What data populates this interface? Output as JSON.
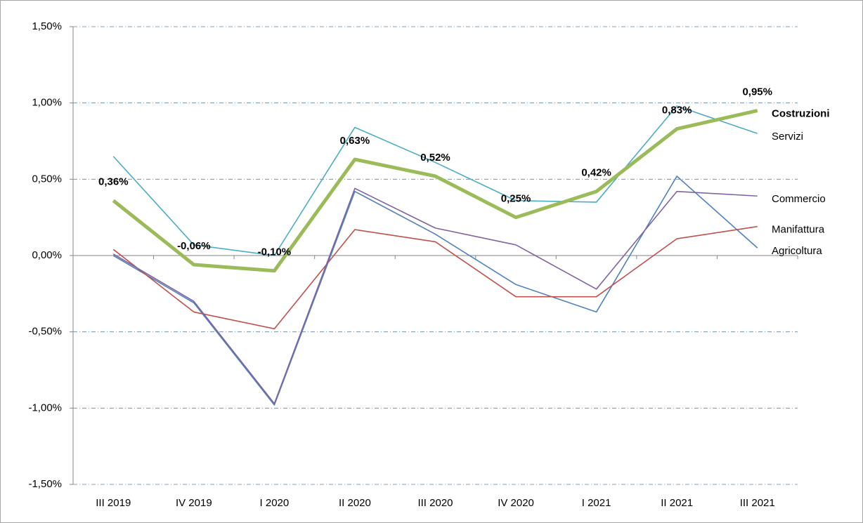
{
  "chart_data": {
    "type": "line",
    "categories": [
      "III 2019",
      "IV 2019",
      "I 2020",
      "II 2020",
      "III 2020",
      "IV 2020",
      "I 2021",
      "II 2021",
      "III 2021"
    ],
    "ylim": [
      -1.5,
      1.5
    ],
    "yticks": [
      {
        "value": -1.5,
        "label": "-1,50%"
      },
      {
        "value": -1.0,
        "label": "-1,00%"
      },
      {
        "value": -0.5,
        "label": "-0,50%"
      },
      {
        "value": 0,
        "label": "0,00%"
      },
      {
        "value": 0.5,
        "label": "0,50%"
      },
      {
        "value": 1.0,
        "label": "1,00%"
      },
      {
        "value": 1.5,
        "label": "1,50%"
      }
    ],
    "grid": true,
    "series": [
      {
        "name": "Costruzioni",
        "color": "#9bbb59",
        "values": [
          0.36,
          -0.06,
          -0.1,
          0.63,
          0.52,
          0.25,
          0.42,
          0.83,
          0.95
        ],
        "value_labels": [
          "0,36%",
          "-0,06%",
          "-0,10%",
          "0,63%",
          "0,52%",
          "0,25%",
          "0,42%",
          "0,83%",
          "0,95%"
        ]
      },
      {
        "name": "Servizi",
        "color": "#4bacc6",
        "values": [
          0.65,
          0.07,
          0.0,
          0.84,
          0.61,
          0.36,
          0.35,
          0.98,
          0.8
        ]
      },
      {
        "name": "Commercio",
        "color": "#8064a2",
        "values": [
          0.01,
          -0.3,
          -0.97,
          0.44,
          0.18,
          0.07,
          -0.22,
          0.42,
          0.39
        ]
      },
      {
        "name": "Manifattura",
        "color": "#c0504d",
        "values": [
          0.04,
          -0.37,
          -0.48,
          0.17,
          0.09,
          -0.27,
          -0.27,
          0.11,
          0.19
        ]
      },
      {
        "name": "Agricoltura",
        "color": "#4f81bd",
        "values": [
          0.0,
          -0.31,
          -0.98,
          0.42,
          0.14,
          -0.19,
          -0.37,
          0.52,
          0.05
        ]
      }
    ]
  }
}
